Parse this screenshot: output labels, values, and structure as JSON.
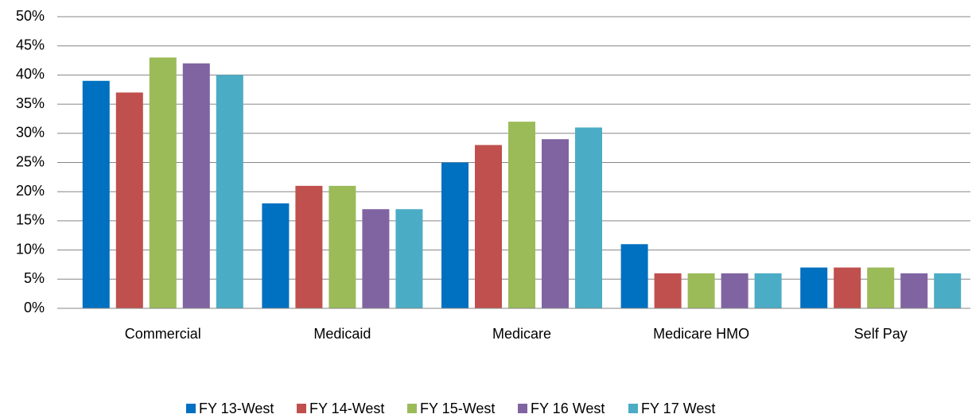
{
  "chart_data": {
    "type": "bar",
    "categories": [
      "Commercial",
      "Medicaid",
      "Medicare",
      "Medicare HMO",
      "Self Pay"
    ],
    "series": [
      {
        "name": "FY 13-West",
        "color": "#0070c0",
        "values": [
          39,
          18,
          25,
          11,
          7
        ]
      },
      {
        "name": "FY 14-West",
        "color": "#c0504d",
        "values": [
          37,
          21,
          28,
          6,
          7
        ]
      },
      {
        "name": "FY 15-West",
        "color": "#9bbb59",
        "values": [
          43,
          21,
          32,
          6,
          7
        ]
      },
      {
        "name": "FY 16 West",
        "color": "#8064a2",
        "values": [
          42,
          17,
          29,
          6,
          6
        ]
      },
      {
        "name": "FY 17 West",
        "color": "#4bacc6",
        "values": [
          40,
          17,
          31,
          6,
          6
        ]
      }
    ],
    "ylim": [
      0,
      50
    ],
    "yticks": [
      {
        "value": 0,
        "label": "0%"
      },
      {
        "value": 5,
        "label": "5%"
      },
      {
        "value": 10,
        "label": "10%"
      },
      {
        "value": 15,
        "label": "15%"
      },
      {
        "value": 20,
        "label": "20%"
      },
      {
        "value": 25,
        "label": "25%"
      },
      {
        "value": 30,
        "label": "30%"
      },
      {
        "value": 35,
        "label": "35%"
      },
      {
        "value": 40,
        "label": "40%"
      },
      {
        "value": 45,
        "label": "45%"
      },
      {
        "value": 50,
        "label": "50%"
      }
    ],
    "grid": true,
    "legend": "bottom"
  }
}
